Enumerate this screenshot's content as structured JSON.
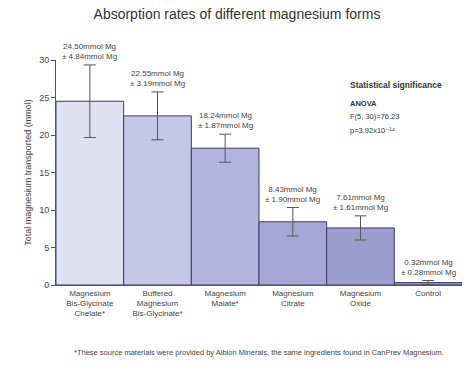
{
  "chart_data": {
    "type": "bar",
    "title": "Absorption rates of different magnesium forms",
    "y_label": "Total magnesium transported (mmol)",
    "categories": [
      "Magnesium Bis-Glycinate Chelate*",
      "Buffered Magnesium Bis-Glycinate*",
      "Magnesium Malate*",
      "Magnesium Citrate",
      "Magnesium Oxide",
      "Control"
    ],
    "values": [
      24.5,
      22.55,
      18.24,
      8.43,
      7.61,
      0.32
    ],
    "value_labels": [
      "24.50mmol Mg",
      "22.55mmol Mg",
      "18.24mmol Mg",
      "8.43mmol Mg",
      "7.61mmol Mg",
      "0.32mmol Mg"
    ],
    "errors": [
      4.84,
      3.19,
      1.87,
      1.9,
      1.61,
      0.28
    ],
    "error_labels": [
      "± 4.84mmol Mg",
      "± 3.19mmol Mg",
      "± 1.87mmol Mg",
      "± 1.90mmol Mg",
      "± 1.61mmol Mg",
      "± 0.28mmol Mg"
    ],
    "colors": [
      "#dfe0f2",
      "#c6c7e6",
      "#b3b4dc",
      "#a5a6d4",
      "#9c9dcf",
      "#9495ca"
    ],
    "ylim": [
      0,
      30
    ],
    "yticks": [
      0,
      5,
      10,
      15,
      20,
      25,
      30
    ],
    "grid": false,
    "data_labels": true,
    "annotations": [
      "Statistical significance",
      "ANOVA",
      "F(5, 30)=76.23",
      "p=3.92x10⁻¹⁴"
    ],
    "footnote": "*These source materials were provided by Albion Minerals, the same ingredients found in CanPrev Magnesium."
  }
}
